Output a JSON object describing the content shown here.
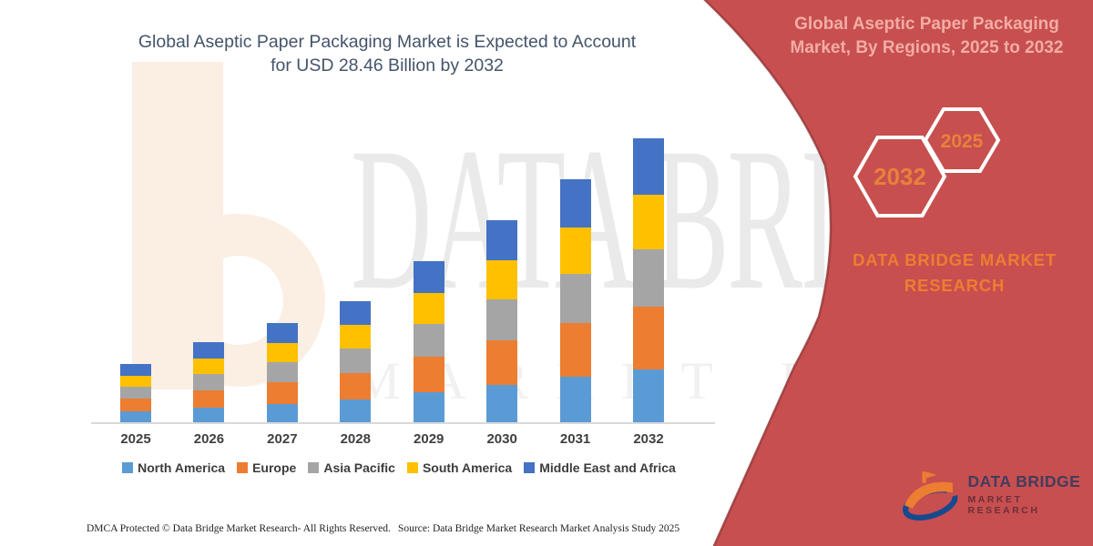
{
  "chart": {
    "title_line1": "Global Aseptic Paper Packaging Market is Expected to Account",
    "title_line2": "for USD 28.46 Billion by 2032",
    "title_color": "#44546A"
  },
  "chart_data": {
    "type": "bar",
    "stacked": true,
    "title": "Global Aseptic Paper Packaging Market is Expected to Account for USD 28.46 Billion by 2032",
    "unit": "USD Billion",
    "categories": [
      "2025",
      "2026",
      "2027",
      "2028",
      "2029",
      "2030",
      "2031",
      "2032"
    ],
    "series": [
      {
        "name": "North America",
        "color": "#5B9BD5",
        "values": [
          1.1,
          1.49,
          1.85,
          2.26,
          3.0,
          3.76,
          4.53,
          5.29
        ]
      },
      {
        "name": "Europe",
        "color": "#ED7D31",
        "values": [
          1.31,
          1.77,
          2.22,
          2.68,
          3.57,
          4.48,
          5.38,
          6.29
        ]
      },
      {
        "name": "Asia Pacific",
        "color": "#A5A5A5",
        "values": [
          1.2,
          1.62,
          2.03,
          2.45,
          3.26,
          4.09,
          4.92,
          5.75
        ]
      },
      {
        "name": "South America",
        "color": "#FFC000",
        "values": [
          1.14,
          1.54,
          1.93,
          2.33,
          3.1,
          3.89,
          4.68,
          5.47
        ]
      },
      {
        "name": "Middle East and Africa",
        "color": "#4472C4",
        "values": [
          1.18,
          1.61,
          2.0,
          2.41,
          3.21,
          4.03,
          4.84,
          5.66
        ]
      }
    ],
    "totals": [
      5.93,
      8.03,
      10.03,
      12.13,
      16.14,
      20.25,
      24.35,
      28.46
    ],
    "ylim": [
      0,
      28.46
    ],
    "grid": false,
    "legend_position": "bottom",
    "xlabel": "",
    "ylabel": ""
  },
  "side_panel": {
    "title": "Global Aseptic Paper Packaging Market, By Regions, 2025 to 2032",
    "hexagons": [
      {
        "label": "2032"
      },
      {
        "label": "2025"
      }
    ],
    "brand": "DATA BRIDGE MARKET RESEARCH",
    "bg_color": "#C74F4F",
    "accent_color": "#ED7D31",
    "title_color": "#F2ACA4"
  },
  "watermark": {
    "line1": "DATA BRIDGE",
    "line2": "MARKET RESEARCH"
  },
  "logo": {
    "name_line1": "DATA BRIDGE",
    "name_line2": "MARKET RESEARCH"
  },
  "footer": {
    "left": "DMCA Protected © Data Bridge Market Research-  All Rights Reserved.",
    "right": "Source: Data Bridge Market Research Market Analysis Study 2025"
  }
}
